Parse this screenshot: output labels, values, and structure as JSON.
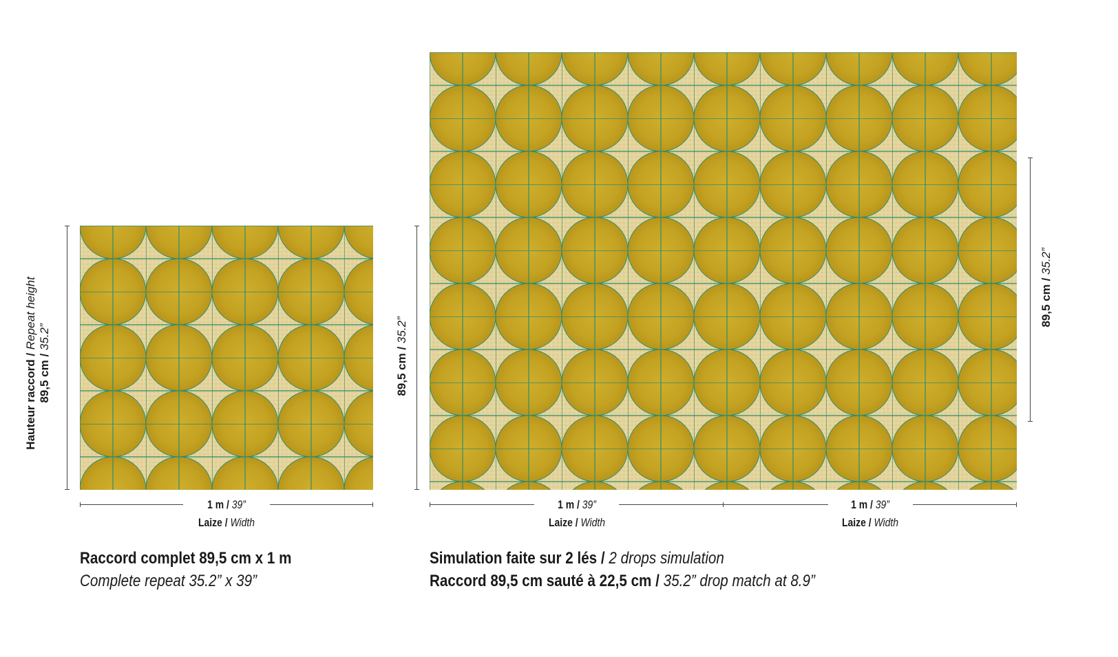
{
  "left_panel": {
    "height_label_fr": "Hauteur raccord",
    "height_label_en": "Repeat height",
    "height_cm": "89,5 cm",
    "height_in": "35.2”",
    "width_m": "1 m",
    "width_in": "39”",
    "width_label_fr": "Laize",
    "width_label_en": "Width",
    "caption_line1": "Raccord complet 89,5 cm x 1 m",
    "caption_line2": "Complete repeat 35.2” x 39”"
  },
  "right_panel": {
    "left_height_cm": "89,5 cm",
    "left_height_in": "35.2”",
    "right_height_cm": "89,5 cm",
    "right_height_in": "35.2”",
    "widths": [
      {
        "m": "1 m",
        "in": "39”",
        "fr": "Laize",
        "en": "Width"
      },
      {
        "m": "1 m",
        "in": "39”",
        "fr": "Laize",
        "en": "Width"
      }
    ],
    "caption_line1_fr": "Simulation faite sur 2 lés",
    "caption_line1_en": "2 drops simulation",
    "caption_line2_fr": "Raccord 89,5 cm sauté à 22,5 cm",
    "caption_line2_en": "35.2” drop match at 8.9”"
  },
  "separator": " / ",
  "colors": {
    "background": "#e6d7a2",
    "circle": "#c9a822",
    "circle_dark": "#b8961a",
    "grid_line": "#2e8c6e"
  }
}
